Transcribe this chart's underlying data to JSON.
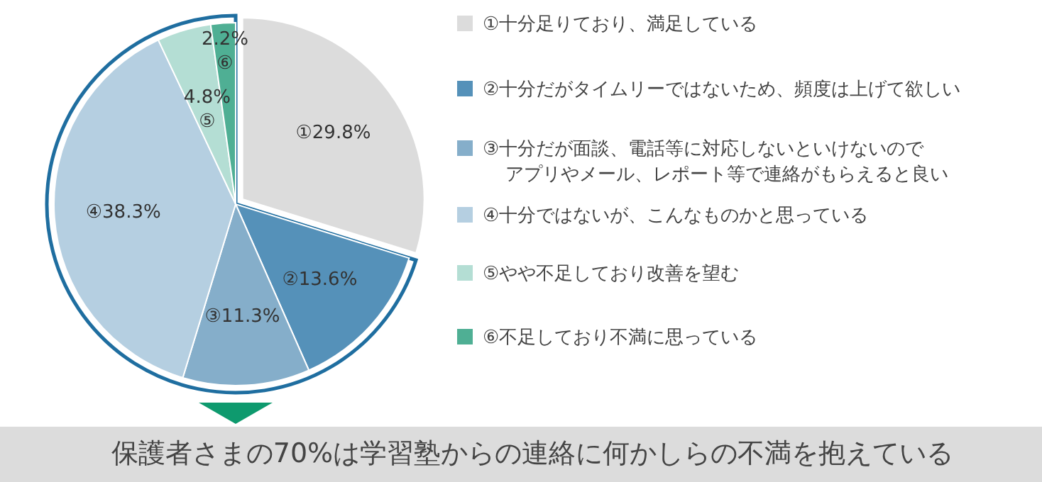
{
  "chart_data": {
    "type": "pie",
    "categories": [
      "①十分足りており、満足している",
      "②十分だがタイムリーではないため、頻度は上げて欲しい",
      "③十分だが面談、電話等に対応しないといけないのでアプリやメール、レポート等で連絡がもらえると良い",
      "④十分ではないが、こんなものかと思っている",
      "⑤やや不足しており改善を望む",
      "⑥不足しており不満に思っている"
    ],
    "values": [
      29.8,
      13.6,
      11.3,
      38.3,
      4.8,
      2.2
    ],
    "colors": [
      "#dcdcdc",
      "#5591b9",
      "#85aeca",
      "#b5cfe1",
      "#b4ded4",
      "#4faf94"
    ],
    "value_labels": [
      "①29.8%",
      "②13.6%",
      "③11.3%",
      "④38.3%",
      "4.8%\n⑤",
      "2.2%\n⑥"
    ],
    "legend": "right",
    "annotations": [
      "保護者さまの70%は学習塾からの連絡に何かしらの不満を抱えている"
    ]
  }
}
